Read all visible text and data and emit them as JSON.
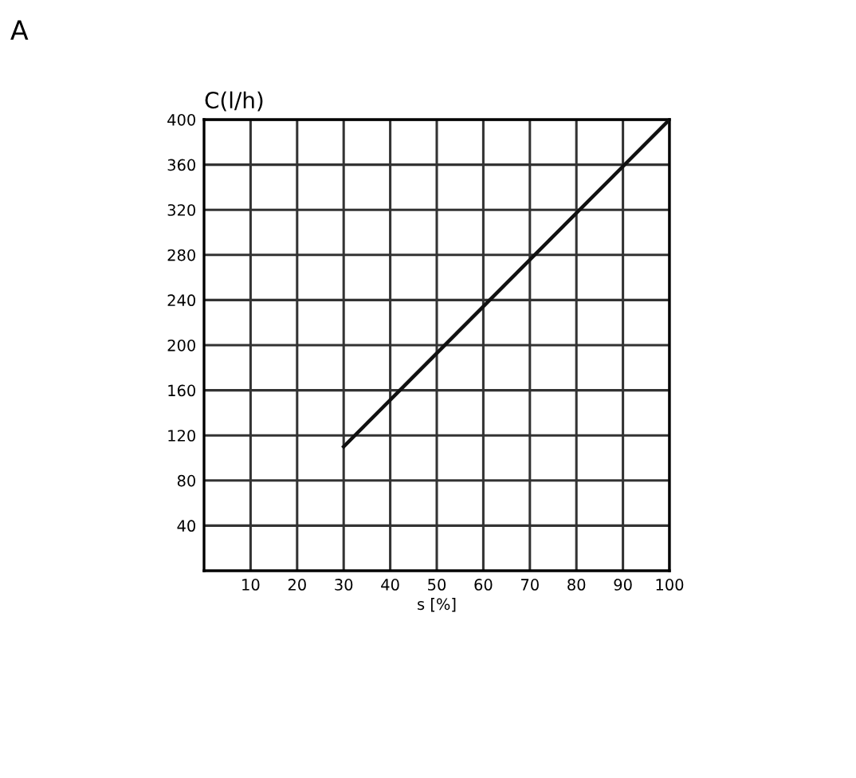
{
  "chart_data": {
    "type": "line",
    "ylabel": "C(l/h)",
    "xlabel": "s [%]",
    "annotations": [
      "A"
    ],
    "series": [
      {
        "x": [
          30,
          100
        ],
        "values": [
          110,
          400
        ],
        "color": "#111111"
      }
    ],
    "xlim": [
      0,
      100
    ],
    "xticks": [
      10,
      20,
      30,
      40,
      50,
      60,
      70,
      80,
      90,
      100
    ],
    "ylim": [
      0,
      400
    ],
    "yticks": [
      40,
      80,
      120,
      160,
      200,
      240,
      280,
      320,
      360,
      400
    ],
    "grid": true,
    "marker": "none",
    "line_style": "solid"
  }
}
